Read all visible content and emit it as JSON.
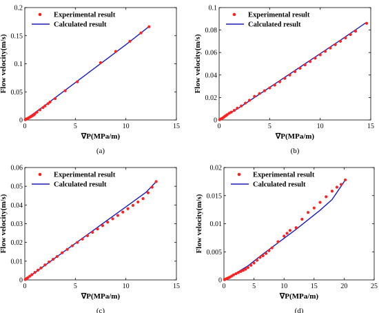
{
  "colors": {
    "experimental": "#ff2020",
    "calculated": "#1a1ab4",
    "axis": "#000000"
  },
  "chart_data": [
    {
      "type": "scatter",
      "caption": "(a)",
      "xlabel": "∇P(MPa/m)",
      "ylabel": "Flow velocity(m/s)",
      "xlim": [
        0,
        15
      ],
      "ylim": [
        0,
        0.2
      ],
      "xticks": [
        0,
        5,
        10,
        15
      ],
      "xtick_labels": [
        "0",
        "5",
        "10",
        "15"
      ],
      "yticks": [
        0,
        0.05,
        0.1,
        0.15,
        0.2
      ],
      "ytick_labels": [
        "0",
        "0.05",
        "0.1",
        "0.15",
        "0.2"
      ],
      "legend_position": "top-left",
      "series": [
        {
          "name": "Experimental result",
          "kind": "points",
          "x": [
            0.05,
            0.1,
            0.15,
            0.2,
            0.3,
            0.4,
            0.5,
            0.6,
            0.7,
            0.8,
            0.9,
            1.0,
            1.2,
            1.5,
            1.8,
            2.0,
            2.3,
            2.5,
            3.0,
            4.0,
            5.2,
            7.5,
            9.0,
            10.4,
            11.5,
            12.3
          ],
          "y": [
            0.0005,
            0.001,
            0.0015,
            0.002,
            0.003,
            0.004,
            0.005,
            0.006,
            0.007,
            0.008,
            0.009,
            0.011,
            0.014,
            0.018,
            0.022,
            0.025,
            0.029,
            0.032,
            0.038,
            0.052,
            0.068,
            0.102,
            0.122,
            0.14,
            0.155,
            0.166
          ]
        },
        {
          "name": "Calculated result",
          "kind": "line",
          "x": [
            0,
            2,
            4,
            6,
            8,
            10,
            12.2
          ],
          "y": [
            0,
            0.026,
            0.053,
            0.08,
            0.107,
            0.134,
            0.165
          ]
        }
      ]
    },
    {
      "type": "scatter",
      "caption": "(b)",
      "xlabel": "∇P(MPa/m)",
      "ylabel": "Flow velocity(m/s)",
      "xlim": [
        0,
        15
      ],
      "ylim": [
        0,
        0.1
      ],
      "xticks": [
        0,
        5,
        10,
        15
      ],
      "xtick_labels": [
        "0",
        "5",
        "10",
        "15"
      ],
      "yticks": [
        0,
        0.02,
        0.04,
        0.06,
        0.08,
        0.1
      ],
      "ytick_labels": [
        "0",
        "0.02",
        "0.04",
        "0.06",
        "0.08",
        "0.1"
      ],
      "legend_position": "top-left",
      "series": [
        {
          "name": "Experimental result",
          "kind": "points",
          "x": [
            0.05,
            0.1,
            0.2,
            0.3,
            0.4,
            0.5,
            0.6,
            0.7,
            0.8,
            1.0,
            1.2,
            1.5,
            1.8,
            2.2,
            2.6,
            3.0,
            3.5,
            4.0,
            4.5,
            5.0,
            5.5,
            6.0,
            6.5,
            7.0,
            7.5,
            8.0,
            8.5,
            9.0,
            9.5,
            10.0,
            10.5,
            11.0,
            11.5,
            12.0,
            12.5,
            13.0,
            13.5,
            14.6
          ],
          "y": [
            0.0002,
            0.0005,
            0.001,
            0.0015,
            0.002,
            0.0028,
            0.0035,
            0.004,
            0.0048,
            0.006,
            0.007,
            0.0085,
            0.0105,
            0.0125,
            0.015,
            0.0175,
            0.021,
            0.0235,
            0.026,
            0.0285,
            0.031,
            0.034,
            0.037,
            0.04,
            0.043,
            0.046,
            0.049,
            0.052,
            0.055,
            0.058,
            0.061,
            0.064,
            0.067,
            0.07,
            0.073,
            0.076,
            0.079,
            0.086
          ]
        },
        {
          "name": "Calculated result",
          "kind": "line",
          "x": [
            0,
            2,
            4,
            6,
            8,
            10,
            12,
            14.6
          ],
          "y": [
            0,
            0.011,
            0.023,
            0.035,
            0.047,
            0.059,
            0.071,
            0.087
          ]
        }
      ]
    },
    {
      "type": "scatter",
      "caption": "(c)",
      "xlabel": "∇P(MPa/m)",
      "ylabel": "Flow velocity(m/s)",
      "xlim": [
        0,
        15
      ],
      "ylim": [
        0,
        0.06
      ],
      "xticks": [
        0,
        5,
        10,
        15
      ],
      "xtick_labels": [
        "0",
        "5",
        "10",
        "15"
      ],
      "yticks": [
        0,
        0.01,
        0.02,
        0.03,
        0.04,
        0.05,
        0.06
      ],
      "ytick_labels": [
        "0",
        "0.01",
        "0.02",
        "0.03",
        "0.04",
        "0.05",
        "0.06"
      ],
      "legend_position": "top-left",
      "series": [
        {
          "name": "Experimental result",
          "kind": "points",
          "x": [
            0.05,
            0.1,
            0.2,
            0.3,
            0.5,
            0.7,
            1.0,
            1.3,
            1.6,
            2.0,
            2.4,
            2.8,
            3.2,
            3.7,
            4.2,
            4.7,
            5.2,
            5.7,
            6.2,
            6.7,
            7.2,
            7.7,
            8.2,
            8.7,
            9.2,
            9.7,
            10.2,
            10.7,
            11.2,
            11.7,
            12.2,
            12.6,
            13.0
          ],
          "y": [
            0.0002,
            0.0004,
            0.0008,
            0.0012,
            0.002,
            0.0028,
            0.004,
            0.0052,
            0.0064,
            0.008,
            0.0096,
            0.011,
            0.0125,
            0.0145,
            0.0163,
            0.0182,
            0.02,
            0.0218,
            0.0236,
            0.0254,
            0.0272,
            0.029,
            0.0308,
            0.0326,
            0.0344,
            0.0362,
            0.038,
            0.0398,
            0.0416,
            0.0434,
            0.0465,
            0.0495,
            0.0525
          ]
        },
        {
          "name": "Calculated result",
          "kind": "line",
          "x": [
            0,
            2,
            4,
            6,
            8,
            10,
            12,
            13.0
          ],
          "y": [
            0,
            0.0078,
            0.0156,
            0.0234,
            0.0312,
            0.039,
            0.0468,
            0.0525
          ]
        }
      ]
    },
    {
      "type": "scatter",
      "caption": "(d)",
      "xlabel": "∇P(MPa/m)",
      "ylabel": "Flow velocity(m/s)",
      "xlim": [
        0,
        25
      ],
      "ylim": [
        0,
        0.02
      ],
      "xticks": [
        0,
        5,
        10,
        15,
        20,
        25
      ],
      "xtick_labels": [
        "0",
        "5",
        "10",
        "15",
        "20",
        "25"
      ],
      "yticks": [
        0,
        0.005,
        0.01,
        0.015,
        0.02
      ],
      "ytick_labels": [
        "0",
        "0.005",
        "0.01",
        "0.015",
        "0.02"
      ],
      "legend_position": "top-left",
      "series": [
        {
          "name": "Experimental result",
          "kind": "points",
          "x": [
            0.1,
            0.2,
            0.4,
            0.6,
            0.8,
            1.0,
            1.3,
            1.6,
            2.0,
            2.4,
            2.8,
            3.2,
            3.6,
            4.0,
            4.5,
            5.0,
            5.5,
            6.0,
            6.5,
            7.0,
            7.5,
            8.0,
            9.0,
            10.0,
            10.5,
            11.0,
            12.0,
            13.0,
            14.0,
            15.0,
            16.0,
            17.0,
            18.0,
            18.8,
            19.5,
            20.2
          ],
          "y": [
            5e-05,
            0.0001,
            0.0002,
            0.0003,
            0.0004,
            0.0005,
            0.0007,
            0.0009,
            0.0011,
            0.0013,
            0.0015,
            0.0017,
            0.0019,
            0.0022,
            0.0026,
            0.003,
            0.0035,
            0.004,
            0.0043,
            0.0047,
            0.0052,
            0.0057,
            0.0068,
            0.0078,
            0.0083,
            0.0088,
            0.0093,
            0.0108,
            0.012,
            0.0128,
            0.0138,
            0.0148,
            0.0158,
            0.0165,
            0.017,
            0.0178
          ]
        },
        {
          "name": "Calculated result",
          "kind": "line",
          "x": [
            0,
            2,
            4,
            6,
            8,
            10,
            12,
            14,
            16,
            18,
            20.2
          ],
          "y": [
            0,
            0.0012,
            0.0025,
            0.0042,
            0.0058,
            0.0074,
            0.009,
            0.0107,
            0.0124,
            0.0143,
            0.0178
          ]
        }
      ]
    }
  ]
}
